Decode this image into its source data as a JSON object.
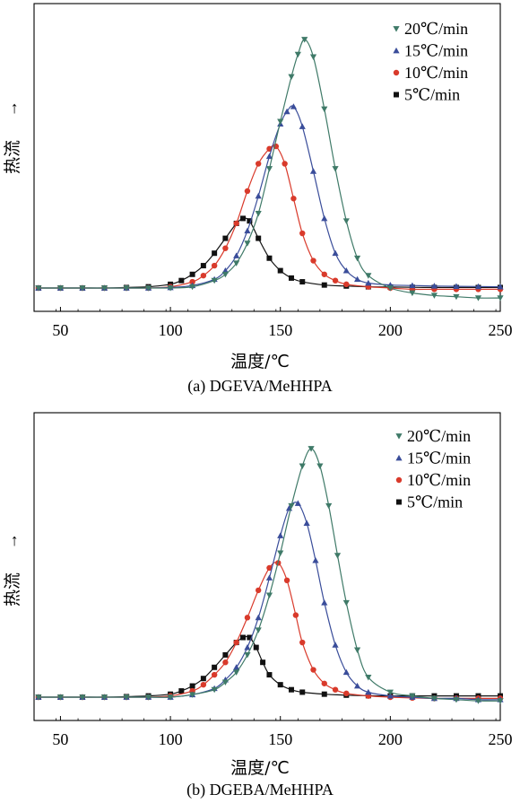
{
  "chart_data": [
    {
      "type": "line",
      "caption": "(a) DGEVA/MeHHPA",
      "xlabel": "温度/℃",
      "ylabel": "热流",
      "ylabel_arrow": "→",
      "xlim": [
        38,
        250
      ],
      "xticks": [
        50,
        100,
        150,
        200,
        250
      ],
      "ylim": [
        0,
        1.08
      ],
      "grid": false,
      "legend_position": "top-right",
      "series": [
        {
          "name": "20℃/min",
          "color": "#3f7a68",
          "marker": "triangle-down",
          "x": [
            40,
            50,
            60,
            70,
            80,
            90,
            100,
            110,
            120,
            125,
            130,
            135,
            140,
            145,
            150,
            155,
            158,
            161,
            165,
            170,
            175,
            180,
            185,
            190,
            200,
            210,
            220,
            230,
            240,
            250
          ],
          "y": [
            0,
            0,
            0,
            0,
            0,
            0,
            0,
            0.005,
            0.03,
            0.055,
            0.1,
            0.18,
            0.3,
            0.48,
            0.67,
            0.85,
            0.94,
            1.0,
            0.93,
            0.72,
            0.48,
            0.27,
            0.12,
            0.05,
            0.0,
            -0.02,
            -0.03,
            -0.035,
            -0.04,
            -0.04
          ]
        },
        {
          "name": "15℃/min",
          "color": "#3a4d9a",
          "marker": "triangle-up",
          "x": [
            40,
            50,
            60,
            70,
            80,
            90,
            100,
            110,
            120,
            125,
            130,
            135,
            140,
            145,
            150,
            153,
            156,
            160,
            165,
            170,
            175,
            180,
            185,
            190,
            200,
            210,
            220,
            230,
            240,
            250
          ],
          "y": [
            0,
            0,
            0,
            0,
            0,
            0,
            0.002,
            0.01,
            0.035,
            0.07,
            0.13,
            0.23,
            0.37,
            0.53,
            0.66,
            0.71,
            0.73,
            0.65,
            0.47,
            0.28,
            0.14,
            0.07,
            0.035,
            0.02,
            0.012,
            0.01,
            0.008,
            0.007,
            0.006,
            0.005
          ]
        },
        {
          "name": "10℃/min",
          "color": "#d93a2b",
          "marker": "circle",
          "x": [
            40,
            50,
            60,
            70,
            80,
            90,
            100,
            110,
            115,
            120,
            125,
            130,
            135,
            140,
            145,
            148,
            152,
            156,
            160,
            165,
            170,
            175,
            180,
            190,
            200,
            210,
            220,
            230,
            240,
            250
          ],
          "y": [
            0,
            0,
            0,
            0,
            0,
            0,
            0.005,
            0.025,
            0.05,
            0.09,
            0.16,
            0.26,
            0.39,
            0.5,
            0.56,
            0.57,
            0.5,
            0.36,
            0.22,
            0.11,
            0.055,
            0.03,
            0.015,
            0.005,
            0.0,
            -0.005,
            -0.005,
            -0.005,
            -0.005,
            -0.005
          ]
        },
        {
          "name": "5℃/min",
          "color": "#111111",
          "marker": "square",
          "x": [
            40,
            50,
            60,
            70,
            80,
            90,
            100,
            105,
            110,
            115,
            120,
            125,
            130,
            133,
            136,
            140,
            145,
            150,
            155,
            160,
            170,
            180,
            190,
            200,
            210,
            220,
            230,
            240,
            250
          ],
          "y": [
            0,
            0,
            0,
            0,
            0.002,
            0.005,
            0.015,
            0.03,
            0.055,
            0.09,
            0.14,
            0.2,
            0.26,
            0.28,
            0.27,
            0.2,
            0.12,
            0.07,
            0.04,
            0.025,
            0.012,
            0.008,
            0.005,
            0.004,
            0.003,
            0.002,
            0.002,
            0.002,
            0.002
          ]
        }
      ]
    },
    {
      "type": "line",
      "caption": "(b) DGEBA/MeHHPA",
      "xlabel": "温度/℃",
      "ylabel": "热流",
      "ylabel_arrow": "→",
      "xlim": [
        38,
        250
      ],
      "xticks": [
        50,
        100,
        150,
        200,
        250
      ],
      "ylim": [
        0,
        1.08
      ],
      "grid": false,
      "legend_position": "top-right",
      "series": [
        {
          "name": "20℃/min",
          "color": "#3f7a68",
          "marker": "triangle-down",
          "x": [
            40,
            50,
            60,
            70,
            80,
            90,
            100,
            110,
            120,
            125,
            130,
            135,
            140,
            145,
            150,
            155,
            160,
            164,
            168,
            172,
            176,
            180,
            185,
            190,
            200,
            210,
            220,
            230,
            240,
            250
          ],
          "y": [
            0,
            0,
            0,
            0,
            0,
            0,
            0,
            0.01,
            0.03,
            0.06,
            0.1,
            0.17,
            0.27,
            0.41,
            0.58,
            0.77,
            0.93,
            1.0,
            0.93,
            0.77,
            0.57,
            0.38,
            0.19,
            0.08,
            0.02,
            0.005,
            -0.005,
            -0.01,
            -0.015,
            -0.015
          ]
        },
        {
          "name": "15℃/min",
          "color": "#3a4d9a",
          "marker": "triangle-up",
          "x": [
            40,
            50,
            60,
            70,
            80,
            90,
            100,
            110,
            120,
            125,
            130,
            135,
            140,
            145,
            150,
            154,
            158,
            162,
            166,
            170,
            175,
            180,
            185,
            190,
            200,
            210,
            220,
            230,
            240,
            250
          ],
          "y": [
            0,
            0,
            0,
            0,
            0,
            0,
            0,
            0.01,
            0.035,
            0.07,
            0.12,
            0.2,
            0.32,
            0.48,
            0.65,
            0.76,
            0.78,
            0.7,
            0.55,
            0.38,
            0.21,
            0.1,
            0.045,
            0.02,
            0.005,
            0.0,
            -0.005,
            -0.005,
            -0.01,
            -0.01
          ]
        },
        {
          "name": "10℃/min",
          "color": "#d93a2b",
          "marker": "circle",
          "x": [
            40,
            50,
            60,
            70,
            80,
            90,
            100,
            110,
            115,
            120,
            125,
            130,
            135,
            140,
            145,
            149,
            153,
            157,
            160,
            165,
            170,
            175,
            180,
            190,
            200,
            210,
            220,
            230,
            240,
            250
          ],
          "y": [
            0,
            0,
            0,
            0,
            0,
            0,
            0.005,
            0.025,
            0.05,
            0.09,
            0.14,
            0.22,
            0.32,
            0.43,
            0.52,
            0.54,
            0.47,
            0.33,
            0.22,
            0.11,
            0.055,
            0.03,
            0.015,
            0.005,
            0.0,
            -0.003,
            -0.005,
            -0.005,
            -0.005,
            -0.005
          ]
        },
        {
          "name": "5℃/min",
          "color": "#111111",
          "marker": "square",
          "x": [
            40,
            50,
            60,
            70,
            80,
            90,
            100,
            105,
            110,
            115,
            120,
            125,
            130,
            133,
            136,
            139,
            142,
            145,
            150,
            155,
            160,
            170,
            180,
            190,
            200,
            210,
            220,
            230,
            240,
            250
          ],
          "y": [
            0,
            0,
            0,
            0,
            0.002,
            0.005,
            0.012,
            0.025,
            0.045,
            0.075,
            0.12,
            0.17,
            0.22,
            0.24,
            0.24,
            0.2,
            0.14,
            0.09,
            0.05,
            0.03,
            0.02,
            0.012,
            0.008,
            0.006,
            0.005,
            0.005,
            0.005,
            0.005,
            0.005,
            0.005
          ]
        }
      ]
    }
  ]
}
